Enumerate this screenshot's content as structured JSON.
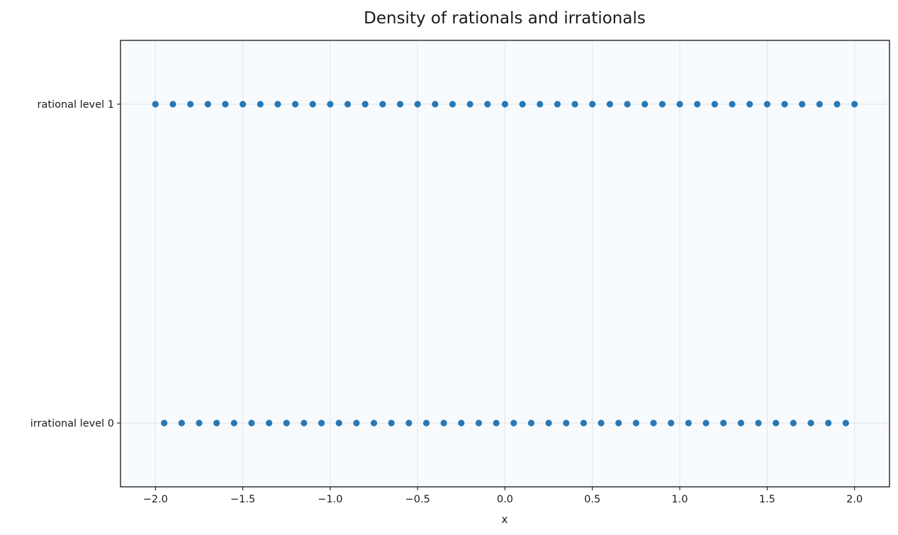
{
  "chart_data": {
    "type": "scatter",
    "title": "Density of rationals and irrationals",
    "xlabel": "x",
    "ylabel": "",
    "xlim": [
      -2.2,
      2.2
    ],
    "x_ticks": [
      -2.0,
      -1.5,
      -1.0,
      -0.5,
      0.0,
      0.5,
      1.0,
      1.5,
      2.0
    ],
    "x_tick_labels": [
      "−2.0",
      "−1.5",
      "−1.0",
      "−0.5",
      "0.0",
      "0.5",
      "1.0",
      "1.5",
      "2.0"
    ],
    "categories": [
      "irrational level 0",
      "rational level 1"
    ],
    "grid": true,
    "series": [
      {
        "category": "rational level 1",
        "x": [
          -2.0,
          -1.9,
          -1.8,
          -1.7,
          -1.6,
          -1.5,
          -1.4,
          -1.3,
          -1.2,
          -1.1,
          -1.0,
          -0.9,
          -0.8,
          -0.7,
          -0.6,
          -0.5,
          -0.4,
          -0.3,
          -0.2,
          -0.1,
          0.0,
          0.1,
          0.2,
          0.3,
          0.4,
          0.5,
          0.6,
          0.7,
          0.8,
          0.9,
          1.0,
          1.1,
          1.2,
          1.3,
          1.4,
          1.5,
          1.6,
          1.7,
          1.8,
          1.9,
          2.0
        ]
      },
      {
        "category": "irrational level 0",
        "x": [
          -1.95,
          -1.85,
          -1.75,
          -1.65,
          -1.55,
          -1.45,
          -1.35,
          -1.25,
          -1.15,
          -1.05,
          -0.95,
          -0.85,
          -0.75,
          -0.65,
          -0.55,
          -0.45,
          -0.35,
          -0.25,
          -0.15,
          -0.05,
          0.05,
          0.15,
          0.25,
          0.35,
          0.45,
          0.55,
          0.65,
          0.75,
          0.85,
          0.95,
          1.05,
          1.15,
          1.25,
          1.35,
          1.45,
          1.55,
          1.65,
          1.75,
          1.85,
          1.95
        ]
      }
    ],
    "colors": {
      "marker": "#2878b5",
      "plot_background": "#f8fbfe",
      "grid": "#e3e8ee",
      "axes": "#000000"
    }
  }
}
